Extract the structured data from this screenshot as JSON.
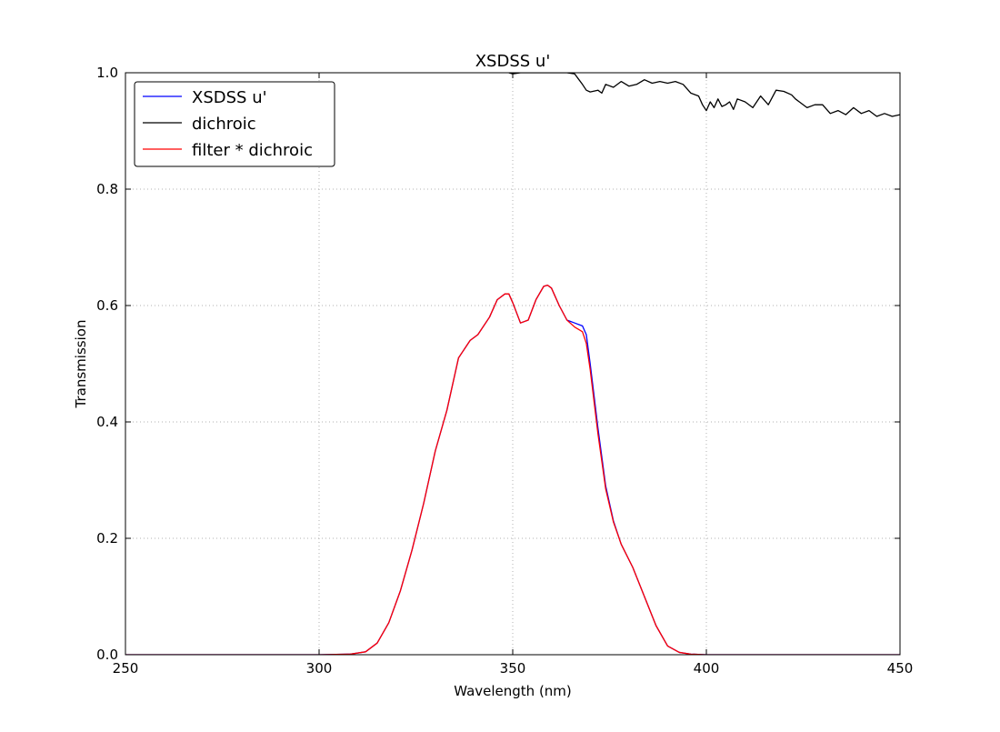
{
  "chart_data": {
    "type": "line",
    "title": "XSDSS u'",
    "xlabel": "Wavelength (nm)",
    "ylabel": "Transmission",
    "xlim": [
      250,
      450
    ],
    "ylim": [
      0.0,
      1.0
    ],
    "xticks": [
      250,
      300,
      350,
      400,
      450
    ],
    "xtick_labels": [
      "250",
      "300",
      "350",
      "400",
      "450"
    ],
    "yticks": [
      0.0,
      0.2,
      0.4,
      0.6,
      0.8,
      1.0
    ],
    "ytick_labels": [
      "0.0",
      "0.2",
      "0.4",
      "0.6",
      "0.8",
      "1.0"
    ],
    "grid": true,
    "legend_position": "top-left",
    "series": [
      {
        "name": "XSDSS u'",
        "color": "#0000ff",
        "x": [
          250,
          300,
          308,
          312,
          315,
          318,
          321,
          324,
          327,
          330,
          333,
          336,
          339,
          341,
          344,
          346,
          348,
          349,
          350,
          352,
          354,
          356,
          358,
          359,
          360,
          362,
          364,
          366,
          368,
          369,
          370,
          372,
          374,
          376,
          378,
          381,
          384,
          387,
          390,
          393,
          396,
          400,
          450
        ],
        "y": [
          0.0,
          0.0,
          0.001,
          0.005,
          0.02,
          0.055,
          0.11,
          0.18,
          0.26,
          0.35,
          0.42,
          0.51,
          0.54,
          0.55,
          0.58,
          0.61,
          0.62,
          0.62,
          0.605,
          0.57,
          0.575,
          0.61,
          0.633,
          0.635,
          0.63,
          0.6,
          0.575,
          0.57,
          0.565,
          0.55,
          0.5,
          0.39,
          0.29,
          0.23,
          0.19,
          0.15,
          0.1,
          0.05,
          0.015,
          0.004,
          0.001,
          0.0,
          0.0
        ]
      },
      {
        "name": "dichroic",
        "color": "#000000",
        "x": [
          349,
          350,
          352,
          354,
          356,
          358,
          360,
          362,
          364,
          366,
          368,
          369,
          370,
          372,
          373,
          374,
          376,
          378,
          380,
          382,
          384,
          386,
          388,
          390,
          392,
          394,
          396,
          398,
          399,
          400,
          401,
          402,
          403,
          404,
          405,
          406,
          407,
          408,
          410,
          412,
          414,
          416,
          418,
          420,
          422,
          423,
          424,
          426,
          428,
          430,
          432,
          434,
          436,
          438,
          440,
          442,
          444,
          446,
          448,
          450
        ],
        "y": [
          1.0,
          0.998,
          1.0,
          1.0,
          1.0,
          1.0,
          1.0,
          1.0,
          1.0,
          0.998,
          0.98,
          0.97,
          0.967,
          0.97,
          0.965,
          0.98,
          0.975,
          0.985,
          0.977,
          0.98,
          0.988,
          0.982,
          0.985,
          0.982,
          0.985,
          0.98,
          0.965,
          0.96,
          0.945,
          0.935,
          0.95,
          0.94,
          0.955,
          0.942,
          0.945,
          0.95,
          0.937,
          0.955,
          0.95,
          0.94,
          0.96,
          0.945,
          0.97,
          0.968,
          0.962,
          0.955,
          0.95,
          0.94,
          0.945,
          0.945,
          0.93,
          0.935,
          0.928,
          0.94,
          0.93,
          0.935,
          0.925,
          0.93,
          0.925,
          0.928
        ]
      },
      {
        "name": "filter * dichroic",
        "color": "#ff0000",
        "x": [
          250,
          300,
          308,
          312,
          315,
          318,
          321,
          324,
          327,
          330,
          333,
          336,
          339,
          341,
          344,
          346,
          348,
          349,
          350,
          352,
          354,
          356,
          358,
          359,
          360,
          362,
          364,
          366,
          368,
          369,
          370,
          372,
          374,
          376,
          378,
          381,
          384,
          387,
          390,
          393,
          396,
          400,
          450
        ],
        "y": [
          0.0,
          0.0,
          0.001,
          0.005,
          0.02,
          0.055,
          0.11,
          0.18,
          0.26,
          0.35,
          0.42,
          0.51,
          0.54,
          0.55,
          0.58,
          0.61,
          0.62,
          0.62,
          0.605,
          0.57,
          0.575,
          0.61,
          0.633,
          0.635,
          0.63,
          0.6,
          0.575,
          0.563,
          0.555,
          0.535,
          0.49,
          0.38,
          0.285,
          0.228,
          0.19,
          0.15,
          0.1,
          0.05,
          0.015,
          0.004,
          0.001,
          0.0,
          0.0
        ]
      }
    ]
  }
}
